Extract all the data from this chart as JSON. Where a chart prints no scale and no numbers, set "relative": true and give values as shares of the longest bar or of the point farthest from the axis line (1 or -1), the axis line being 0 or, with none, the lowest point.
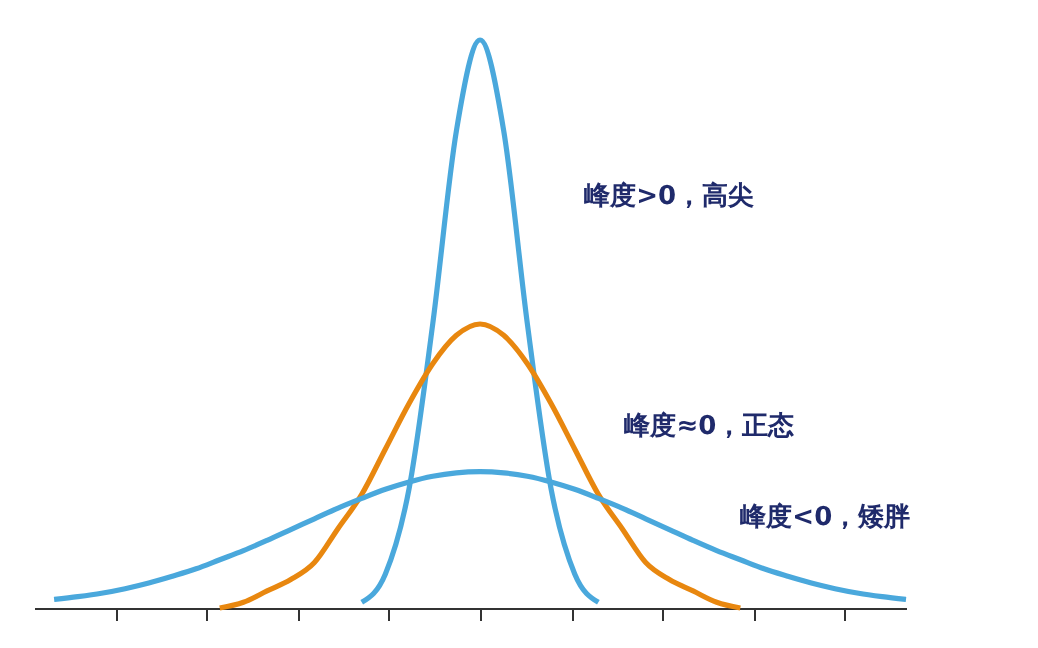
{
  "chart_data": {
    "type": "line",
    "relative": true,
    "grid": false,
    "tick_labels": false,
    "marker": "none",
    "line_style": "solid",
    "categories": [
      null,
      null,
      null,
      null,
      null,
      null,
      null,
      null,
      null,
      null,
      null,
      null,
      null,
      null,
      null,
      null,
      null,
      null,
      null,
      null,
      null,
      null,
      null,
      null,
      null,
      null,
      null,
      null,
      null,
      null,
      null,
      null,
      null,
      null,
      null,
      null,
      null
    ],
    "series": [
      {
        "name": "峰度>0，高尖",
        "color": "#4aa8dc",
        "values": [
          null,
          null,
          null,
          null,
          null,
          null,
          null,
          null,
          null,
          null,
          null,
          null,
          null,
          0.01,
          0.06,
          0.21,
          0.5,
          0.84,
          1,
          0.84,
          0.5,
          0.21,
          0.06,
          0.01,
          null,
          null,
          null,
          null,
          null,
          null,
          null,
          null,
          null,
          null,
          null,
          null,
          null
        ]
      },
      {
        "name": "峰度≈0，正态",
        "color": "#e8870f",
        "values": [
          null,
          null,
          null,
          null,
          null,
          null,
          null,
          0,
          0.01,
          0.03,
          0.05,
          0.08,
          0.14,
          0.2,
          0.28,
          0.36,
          0.43,
          0.48,
          0.5,
          0.48,
          0.43,
          0.36,
          0.28,
          0.2,
          0.14,
          0.08,
          0.05,
          0.03,
          0.01,
          0,
          null,
          null,
          null,
          null,
          null,
          null,
          null
        ]
      },
      {
        "name": "峰度<0，矮胖",
        "color": "#4aa8dc",
        "values": [
          0.015,
          0.02,
          0.026,
          0.034,
          0.044,
          0.056,
          0.069,
          0.085,
          0.101,
          0.119,
          0.138,
          0.157,
          0.176,
          0.193,
          0.209,
          0.222,
          0.232,
          0.238,
          0.24,
          0.238,
          0.232,
          0.222,
          0.209,
          0.193,
          0.176,
          0.157,
          0.138,
          0.119,
          0.101,
          0.085,
          0.069,
          0.056,
          0.044,
          0.034,
          0.026,
          0.02,
          0.015
        ]
      }
    ]
  }
}
